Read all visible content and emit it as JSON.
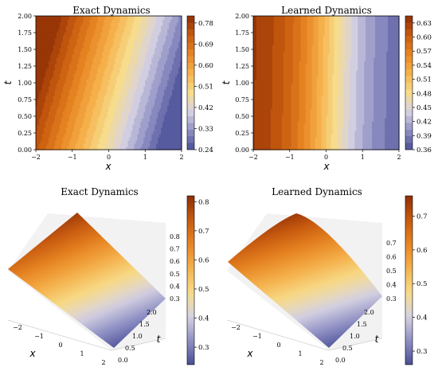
{
  "palette": [
    "#4a4e96",
    "#8f90c4",
    "#d7d3e3",
    "#f7dc8a",
    "#f5b14c",
    "#e78522",
    "#c75a0f",
    "#8e2e06"
  ],
  "chart_data": [
    {
      "type": "heatmap",
      "title": "Exact Dynamics",
      "xlabel": "x",
      "ylabel": "t",
      "xlim": [
        -2,
        2
      ],
      "ylim": [
        0,
        2
      ],
      "x_ticks": [
        "−2",
        "−1",
        "0",
        "1",
        "2"
      ],
      "y_ticks": [
        "0.00",
        "0.25",
        "0.50",
        "0.75",
        "1.00",
        "1.25",
        "1.50",
        "1.75",
        "2.00"
      ],
      "colorbar_range": [
        0.24,
        0.81
      ],
      "colorbar_ticks": [
        "0.24",
        "0.33",
        "0.42",
        "0.51",
        "0.60",
        "0.69",
        "0.78"
      ],
      "levels": 20
    },
    {
      "type": "heatmap",
      "title": "Learned Dynamics",
      "xlabel": "x",
      "ylabel": "t",
      "xlim": [
        -2,
        2
      ],
      "ylim": [
        0,
        2
      ],
      "x_ticks": [
        "−2",
        "−1",
        "0",
        "1",
        "2"
      ],
      "y_ticks": [
        "0.00",
        "0.25",
        "0.50",
        "0.75",
        "1.00",
        "1.25",
        "1.50",
        "1.75",
        "2.00"
      ],
      "colorbar_range": [
        0.36,
        0.645
      ],
      "colorbar_ticks": [
        "0.36",
        "0.39",
        "0.42",
        "0.45",
        "0.48",
        "0.51",
        "0.54",
        "0.57",
        "0.60",
        "0.63"
      ],
      "levels": 20
    },
    {
      "type": "surface",
      "title": "Exact Dynamics",
      "xlabel": "x",
      "ylabel": "t",
      "x_ticks": [
        "−2",
        "−1",
        "0",
        "1",
        "2"
      ],
      "y_ticks": [
        "0.0",
        "0.5",
        "1.0",
        "1.5",
        "2.0"
      ],
      "z_ticks": [
        "0.3",
        "0.4",
        "0.5",
        "0.6",
        "0.7",
        "0.8"
      ],
      "colorbar_range": [
        0.24,
        0.82
      ],
      "colorbar_ticks": [
        "0.3",
        "0.4",
        "0.5",
        "0.6",
        "0.7",
        "0.8"
      ]
    },
    {
      "type": "surface",
      "title": "Learned Dynamics",
      "xlabel": "x",
      "ylabel": "t",
      "x_ticks": [
        "−2",
        "−1",
        "0",
        "1",
        "2"
      ],
      "y_ticks": [
        "0.0",
        "0.5",
        "1.0",
        "1.5",
        "2.0"
      ],
      "z_ticks": [
        "0.3",
        "0.4",
        "0.5",
        "0.6",
        "0.7"
      ],
      "colorbar_range": [
        0.26,
        0.76
      ],
      "colorbar_ticks": [
        "0.3",
        "0.4",
        "0.5",
        "0.6",
        "0.7"
      ]
    }
  ]
}
